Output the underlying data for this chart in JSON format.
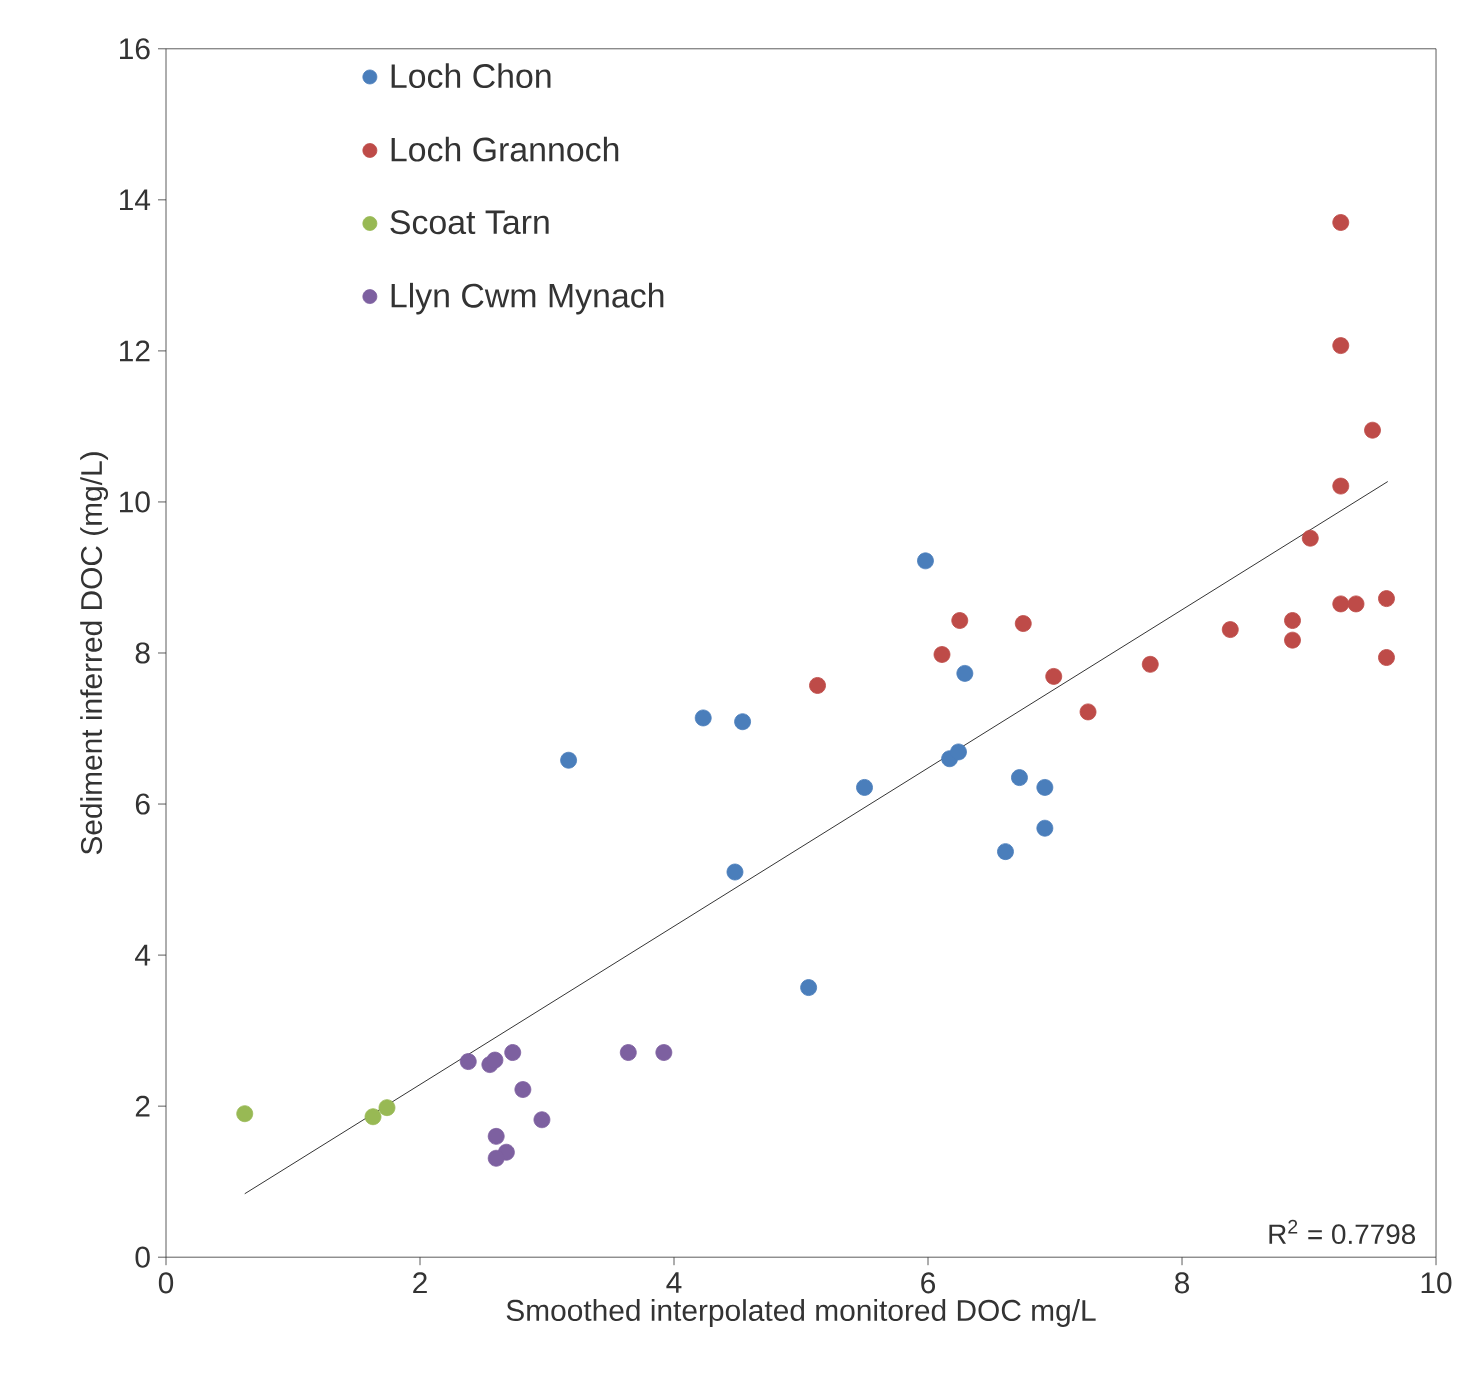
{
  "chart_data": {
    "type": "scatter",
    "xlabel": "Smoothed interpolated monitored DOC mg/L",
    "ylabel": "Sediment inferred DOC (mg/L)",
    "xlim": [
      0,
      10
    ],
    "ylim": [
      0,
      16
    ],
    "xticks": [
      0,
      2,
      4,
      6,
      8,
      10
    ],
    "yticks": [
      0,
      2,
      4,
      6,
      8,
      10,
      12,
      14,
      16
    ],
    "grid": false,
    "legend": "top left",
    "marker": "circle",
    "series": [
      {
        "name": "Loch Chon",
        "color": "#4a7ebb",
        "x": [
          3.17,
          4.23,
          4.54,
          4.48,
          5.06,
          5.5,
          5.98,
          6.17,
          6.24,
          6.29,
          6.72,
          6.92,
          6.92,
          6.61
        ],
        "values": [
          6.58,
          7.14,
          7.09,
          5.1,
          3.57,
          6.22,
          9.22,
          6.6,
          6.69,
          7.73,
          6.35,
          6.22,
          5.68,
          5.37
        ]
      },
      {
        "name": "Loch Grannoch",
        "color": "#be4b48",
        "x": [
          5.13,
          6.11,
          6.25,
          6.75,
          6.99,
          7.26,
          7.75,
          8.38,
          8.87,
          8.87,
          9.01,
          9.25,
          9.25,
          9.25,
          9.5,
          9.25,
          9.37,
          9.61,
          9.61
        ],
        "values": [
          7.57,
          7.98,
          8.43,
          8.39,
          7.69,
          7.22,
          7.85,
          8.31,
          8.43,
          8.17,
          9.52,
          13.7,
          12.07,
          10.21,
          10.95,
          8.65,
          8.65,
          8.72,
          7.94
        ]
      },
      {
        "name": "Scoat Tarn",
        "color": "#98b954",
        "x": [
          0.62,
          1.63,
          1.74
        ],
        "values": [
          1.9,
          1.86,
          1.98
        ]
      },
      {
        "name": "Llyn Cwm Mynach",
        "color": "#7d60a0",
        "x": [
          2.38,
          2.55,
          2.59,
          2.73,
          2.81,
          2.96,
          2.6,
          2.68,
          2.6,
          3.64,
          3.92
        ],
        "values": [
          2.59,
          2.55,
          2.61,
          2.71,
          2.22,
          1.82,
          1.6,
          1.39,
          1.31,
          2.71,
          2.71
        ]
      },
      {
        "type": "line",
        "marker": "none",
        "color": "#000000",
        "x": [
          0.62,
          9.62
        ],
        "values": [
          0.84,
          10.27
        ]
      }
    ],
    "annotations": [
      "R$^{2}$ = 0.7798"
    ]
  }
}
